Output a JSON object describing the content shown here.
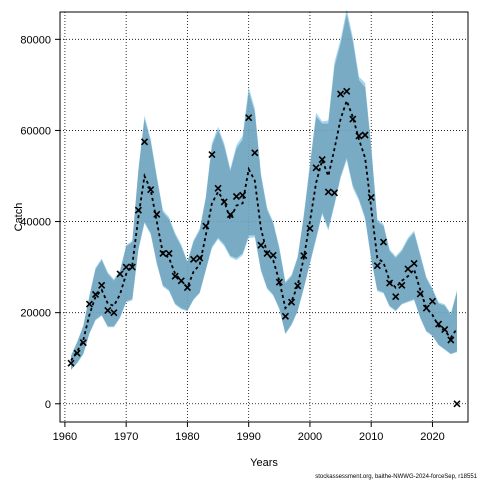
{
  "chart_data": {
    "type": "line",
    "xlabel": "Years",
    "ylabel": "Catch",
    "xlim": [
      1959.2,
      2025.8
    ],
    "ylim": [
      -4000,
      86000
    ],
    "x_ticks": [
      1960,
      1970,
      1980,
      1990,
      2000,
      2010,
      2020
    ],
    "y_ticks": [
      0,
      20000,
      40000,
      60000,
      80000
    ],
    "x_tick_labels": [
      "1960",
      "1970",
      "1980",
      "1990",
      "2000",
      "2010",
      "2020"
    ],
    "y_tick_labels": [
      "0",
      "20000",
      "40000",
      "60000",
      "80000"
    ],
    "grid": true,
    "colors": {
      "band_dark": "#7a8c98",
      "band_light": "#87c8ea",
      "estimate_line": "#000000",
      "observed_marker": "#000000"
    },
    "source_note": "stockassessment.org, baithe-NWWG-2024-forceSep, r18551",
    "series": [
      {
        "role": "estimate",
        "x": [
          1961,
          1962,
          1963,
          1964,
          1965,
          1966,
          1967,
          1968,
          1969,
          1970,
          1971,
          1972,
          1973,
          1974,
          1975,
          1976,
          1977,
          1978,
          1979,
          1980,
          1981,
          1982,
          1983,
          1984,
          1985,
          1986,
          1987,
          1988,
          1989,
          1990,
          1991,
          1992,
          1993,
          1994,
          1995,
          1996,
          1997,
          1998,
          1999,
          2000,
          2001,
          2002,
          2003,
          2004,
          2005,
          2006,
          2007,
          2008,
          2009,
          2010,
          2011,
          2012,
          2013,
          2014,
          2015,
          2016,
          2017,
          2018,
          2019,
          2020,
          2021,
          2022,
          2023,
          2024
        ],
        "values": [
          9500,
          11500,
          14000,
          19500,
          23500,
          25000,
          22000,
          21500,
          24000,
          28500,
          30500,
          41000,
          50000,
          47000,
          40000,
          33000,
          32000,
          28500,
          27000,
          25500,
          29000,
          30500,
          37000,
          44000,
          46500,
          44500,
          40500,
          43500,
          44000,
          51500,
          49000,
          38500,
          33000,
          31500,
          27000,
          21000,
          22500,
          26000,
          32000,
          40000,
          48500,
          53500,
          50000,
          56000,
          62500,
          66500,
          63000,
          58000,
          54000,
          43000,
          32000,
          31000,
          27000,
          25500,
          27000,
          28000,
          29500,
          25000,
          21000,
          19500,
          17000,
          16000,
          14500,
          16500
        ],
        "lower": [
          7500,
          9000,
          11000,
          15500,
          18500,
          19500,
          17000,
          17000,
          19000,
          22500,
          23000,
          34000,
          40000,
          37500,
          31000,
          26000,
          25000,
          22000,
          21000,
          20500,
          23000,
          24500,
          29500,
          34500,
          36500,
          35000,
          32500,
          32000,
          33000,
          37000,
          37000,
          29500,
          25500,
          24000,
          21000,
          15500,
          17500,
          20500,
          25500,
          31000,
          36500,
          42000,
          38500,
          44000,
          50000,
          54000,
          48000,
          45000,
          41000,
          32000,
          25000,
          24500,
          21500,
          20500,
          22000,
          22500,
          23000,
          19000,
          16000,
          15000,
          13000,
          12000,
          11000,
          11500
        ],
        "upper": [
          10500,
          13500,
          17000,
          23500,
          29500,
          31500,
          28500,
          27000,
          29000,
          34500,
          35500,
          51000,
          62500,
          57500,
          49500,
          42000,
          40500,
          37000,
          34500,
          31000,
          35500,
          38000,
          45000,
          56500,
          60000,
          56500,
          51000,
          56000,
          58000,
          68500,
          64000,
          50000,
          42500,
          39500,
          34000,
          26500,
          28000,
          32000,
          41000,
          52000,
          63000,
          61500,
          61500,
          74000,
          79000,
          85500,
          79500,
          71000,
          69500,
          56000,
          40000,
          39000,
          33500,
          32000,
          33500,
          36000,
          37500,
          32500,
          27500,
          25000,
          22000,
          21500,
          19500,
          24500
        ]
      },
      {
        "role": "observed",
        "x": [
          1961,
          1962,
          1963,
          1964,
          1965,
          1966,
          1967,
          1968,
          1969,
          1970,
          1971,
          1972,
          1973,
          1974,
          1975,
          1976,
          1977,
          1978,
          1979,
          1980,
          1981,
          1982,
          1983,
          1984,
          1985,
          1986,
          1987,
          1988,
          1989,
          1990,
          1991,
          1992,
          1993,
          1994,
          1995,
          1996,
          1997,
          1998,
          1999,
          2000,
          2001,
          2002,
          2003,
          2004,
          2005,
          2006,
          2007,
          2008,
          2009,
          2010,
          2011,
          2012,
          2013,
          2014,
          2015,
          2016,
          2017,
          2018,
          2019,
          2020,
          2021,
          2022,
          2023,
          2024
        ],
        "values": [
          8900,
          11100,
          13400,
          21900,
          24000,
          26000,
          20500,
          20000,
          28500,
          30000,
          30000,
          42500,
          57500,
          47000,
          41600,
          33000,
          33000,
          28000,
          27000,
          25500,
          31700,
          32000,
          39000,
          54700,
          47300,
          44300,
          41500,
          45500,
          45800,
          62800,
          55100,
          34800,
          33000,
          32600,
          26700,
          19200,
          22300,
          25900,
          32500,
          38500,
          51800,
          53600,
          46500,
          46300,
          68000,
          68600,
          62500,
          58800,
          59000,
          45300,
          30300,
          35500,
          26500,
          23500,
          26000,
          29600,
          30800,
          24100,
          21000,
          22500,
          17500,
          16300,
          14000,
          0
        ]
      }
    ]
  }
}
